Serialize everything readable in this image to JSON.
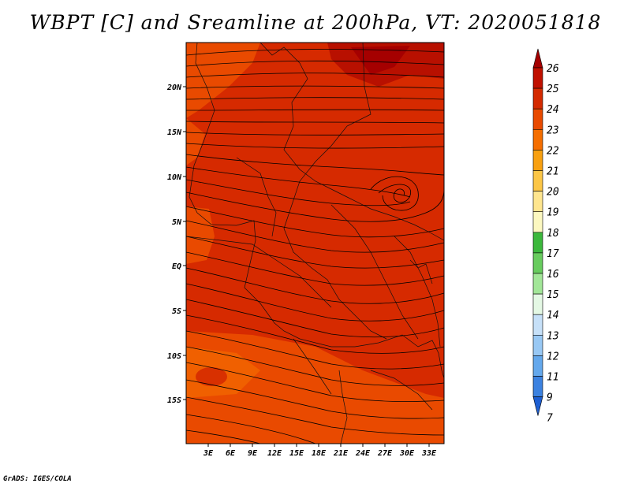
{
  "title": "WBPT [C] and Sreamline at 200hPa, VT: 2020051818",
  "credit": "GrADS: IGES/COLA",
  "map": {
    "lon_ticks": [
      "3E",
      "6E",
      "9E",
      "12E",
      "15E",
      "18E",
      "21E",
      "24E",
      "27E",
      "30E",
      "33E"
    ],
    "lat_ticks": [
      "20N",
      "15N",
      "10N",
      "5N",
      "EQ",
      "5S",
      "10S",
      "15S"
    ]
  },
  "colorbar": {
    "labels": [
      "26",
      "25",
      "24",
      "23",
      "22",
      "21",
      "20",
      "19",
      "18",
      "17",
      "16",
      "15",
      "14",
      "13",
      "12",
      "11",
      "9",
      "7"
    ],
    "colors": [
      "#a50000",
      "#c01000",
      "#d42a00",
      "#e94a00",
      "#f56e00",
      "#f8a010",
      "#fcc646",
      "#fee58e",
      "#fcf8c0",
      "#3cb83c",
      "#68cc5e",
      "#a2e698",
      "#e4f8e4",
      "#c6e0f8",
      "#98c8f4",
      "#64a8ec",
      "#3c82e0",
      "#1e5fd2"
    ]
  },
  "chart_data": {
    "type": "heatmap",
    "title": "WBPT [C] and Sreamline at 200hPa, VT: 2020051818",
    "variable": "WBPT [C]",
    "level": "200hPa",
    "valid_time": "2020051818",
    "lon_range": [
      "1E",
      "35E"
    ],
    "lat_range": [
      "20S",
      "24N"
    ],
    "dominant_values_C": [
      23,
      24,
      25
    ],
    "overlay": "streamlines"
  }
}
